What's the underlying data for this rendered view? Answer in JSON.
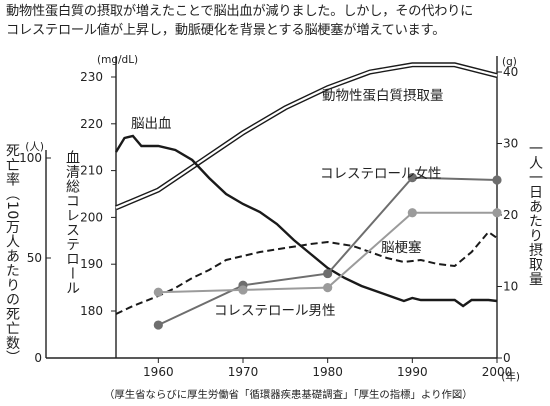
{
  "header": {
    "line1": "動物性蛋白質の摂取が増えたことで脳出血が減りました。しかし，その代わりに",
    "line2": "コレステロール値が上昇し，動脈硬化を背景とする脳梗塞が増えています。"
  },
  "footnote": "（厚生省ならびに厚生労働省「循環器疾患基礎調査」「厚生の指標」より作図）",
  "colors": {
    "black": "#1a1a1a",
    "female": "#6e6e6e",
    "male": "#6e6e6e",
    "female_light": "#9b9b9b"
  },
  "chart_data": {
    "type": "line",
    "x_range": [
      1955,
      2000
    ],
    "x_ticks": [
      1960,
      1970,
      1980,
      1990,
      2000
    ],
    "x_tick_labels": [
      "1960",
      "1970",
      "1980",
      "1990",
      "2000"
    ],
    "x_unit": "(年)",
    "axes": {
      "death_rate": {
        "label": "死亡率（10万人あたりの死亡数）",
        "unit": "(人)",
        "range": [
          0,
          100
        ],
        "ticks": [
          0,
          50,
          100
        ]
      },
      "cholesterol": {
        "label": "血清総コレステロール",
        "unit": "(mg/dL)",
        "range": [
          170,
          230
        ],
        "ticks": [
          180,
          190,
          200,
          210,
          220,
          230
        ]
      },
      "protein": {
        "label": "一人一日あたり摂取量",
        "unit": "(g)",
        "range": [
          0,
          40
        ],
        "ticks": [
          0,
          10,
          20,
          30,
          40
        ]
      }
    },
    "series": [
      {
        "name": "動物性蛋白質摂取量",
        "axis": "protein",
        "style": "double",
        "points": [
          [
            1955,
            21
          ],
          [
            1960,
            23.5
          ],
          [
            1965,
            27.5
          ],
          [
            1970,
            31.5
          ],
          [
            1975,
            35
          ],
          [
            1980,
            37.8
          ],
          [
            1985,
            40
          ],
          [
            1990,
            41
          ],
          [
            1995,
            41
          ],
          [
            2000,
            39.5
          ]
        ]
      },
      {
        "name": "脳出血",
        "axis": "death_rate",
        "style": "solid",
        "points": [
          [
            1955,
            103
          ],
          [
            1956,
            110
          ],
          [
            1957,
            111
          ],
          [
            1958,
            106
          ],
          [
            1960,
            106
          ],
          [
            1962,
            104
          ],
          [
            1964,
            99
          ],
          [
            1966,
            90
          ],
          [
            1968,
            82
          ],
          [
            1970,
            77
          ],
          [
            1972,
            73
          ],
          [
            1974,
            67
          ],
          [
            1976,
            59
          ],
          [
            1978,
            52
          ],
          [
            1980,
            45
          ],
          [
            1982,
            40
          ],
          [
            1984,
            36
          ],
          [
            1986,
            33
          ],
          [
            1988,
            30
          ],
          [
            1989,
            28.5
          ],
          [
            1990,
            30
          ],
          [
            1991,
            29
          ],
          [
            1993,
            29
          ],
          [
            1995,
            29
          ],
          [
            1996,
            26
          ],
          [
            1997,
            29
          ],
          [
            1999,
            29
          ],
          [
            2000,
            28.5
          ]
        ]
      },
      {
        "name": "脳梗塞",
        "axis": "death_rate",
        "style": "dashed",
        "points": [
          [
            1955,
            22
          ],
          [
            1957,
            26
          ],
          [
            1960,
            31
          ],
          [
            1962,
            35
          ],
          [
            1964,
            40
          ],
          [
            1966,
            44
          ],
          [
            1968,
            49
          ],
          [
            1970,
            51
          ],
          [
            1972,
            53
          ],
          [
            1975,
            55
          ],
          [
            1978,
            57
          ],
          [
            1980,
            58
          ],
          [
            1983,
            56
          ],
          [
            1985,
            53
          ],
          [
            1987,
            50
          ],
          [
            1989,
            48
          ],
          [
            1991,
            49
          ],
          [
            1993,
            47
          ],
          [
            1995,
            46
          ],
          [
            1997,
            53
          ],
          [
            1999,
            63
          ],
          [
            2000,
            60
          ]
        ]
      },
      {
        "name": "コレステロール女性",
        "axis": "cholesterol",
        "style": "marker-dark",
        "points": [
          [
            1960,
            177
          ],
          [
            1970,
            185.5
          ],
          [
            1980,
            188
          ],
          [
            1990,
            208.5
          ],
          [
            2000,
            208
          ]
        ]
      },
      {
        "name": "コレステロール男性",
        "axis": "cholesterol",
        "style": "marker-light",
        "points": [
          [
            1960,
            184
          ],
          [
            1970,
            184.5
          ],
          [
            1980,
            185
          ],
          [
            1990,
            201
          ],
          [
            2000,
            201
          ]
        ]
      }
    ]
  }
}
